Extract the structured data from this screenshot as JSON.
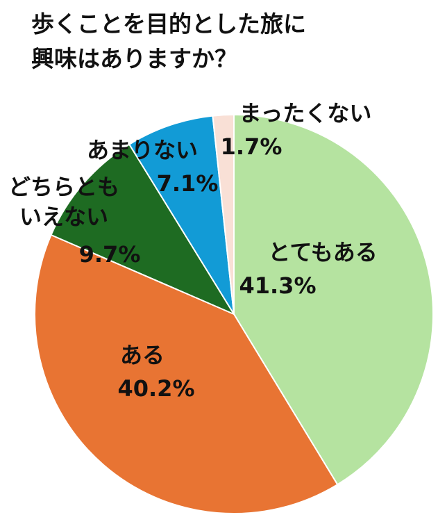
{
  "chart_data": {
    "type": "pie",
    "title_lines": [
      "歩くことを目的とした旅に",
      "興味はありますか？"
    ],
    "categories": [
      "とてもある",
      "ある",
      "どちらともいえない",
      "あまりない",
      "まったくない"
    ],
    "values": [
      41.3,
      40.2,
      9.7,
      7.1,
      1.7
    ],
    "value_labels": [
      "41.3%",
      "40.2%",
      "9.7%",
      "7.1%",
      "1.7%"
    ],
    "colors": [
      "#b5e3a0",
      "#e87433",
      "#1e6b22",
      "#129bd6",
      "#f9e0d6"
    ]
  }
}
